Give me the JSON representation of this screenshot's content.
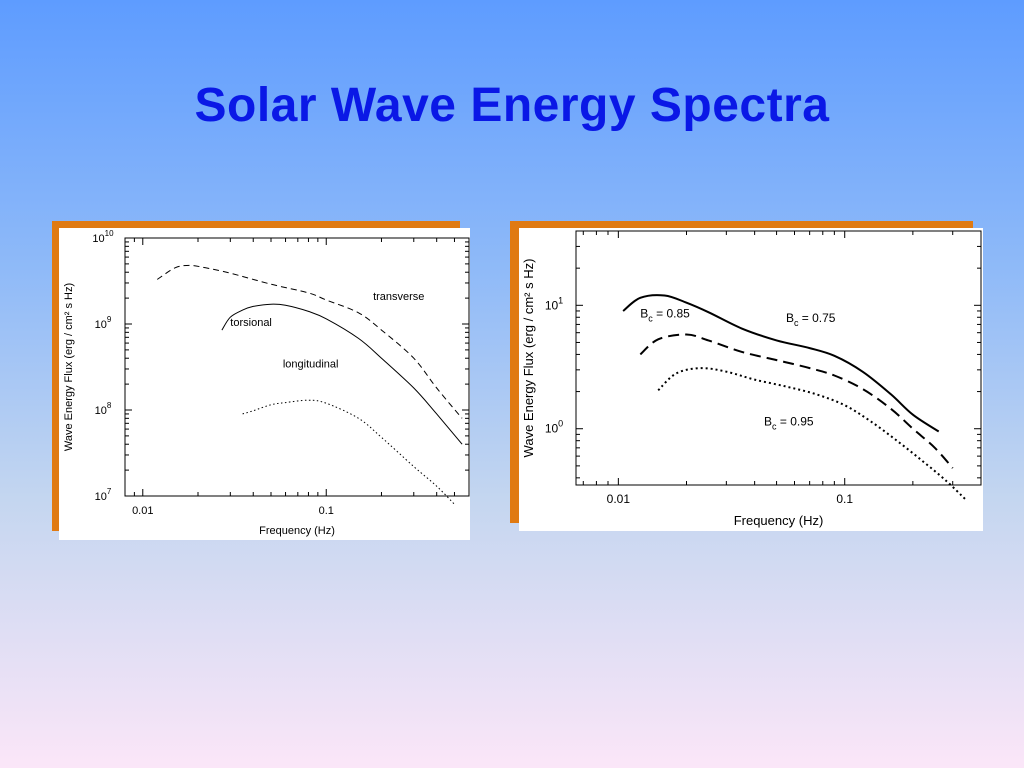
{
  "slide": {
    "title": "Solar Wave Energy Spectra"
  },
  "colors": {
    "title": "#0a18e6",
    "frame": "#e07a12",
    "panel": "#ffffff"
  },
  "chart_data": [
    {
      "type": "line",
      "xlabel": "Frequency  (Hz)",
      "ylabel": "Wave Energy Flux (erg / cm² s Hz)",
      "xscale": "log",
      "yscale": "log",
      "xlim": [
        0.008,
        0.6
      ],
      "ylim": [
        10000000.0,
        10000000000.0
      ],
      "xticks": [
        {
          "v": 0.01,
          "label": "0.01"
        },
        {
          "v": 0.1,
          "label": "0.1"
        }
      ],
      "yticks": [
        {
          "v": 10000000.0,
          "base": "10",
          "exp": "7"
        },
        {
          "v": 100000000.0,
          "base": "10",
          "exp": "8"
        },
        {
          "v": 1000000000.0,
          "base": "10",
          "exp": "9"
        },
        {
          "v": 10000000000.0,
          "base": "10",
          "exp": "10"
        }
      ],
      "series": [
        {
          "name": "transverse",
          "dash": "6,4",
          "width": 1,
          "x": [
            0.012,
            0.015,
            0.018,
            0.022,
            0.03,
            0.05,
            0.08,
            0.1,
            0.15,
            0.2,
            0.3,
            0.4,
            0.55
          ],
          "y": [
            3300000000.0,
            4500000000.0,
            4800000000.0,
            4500000000.0,
            3900000000.0,
            2900000000.0,
            2300000000.0,
            1900000000.0,
            1350000000.0,
            850000000.0,
            400000000.0,
            180000000.0,
            80000000.0
          ],
          "label": {
            "text": "transverse",
            "x": 0.18,
            "y": 1900000000.0
          }
        },
        {
          "name": "torsional",
          "dash": "",
          "width": 1,
          "x": [
            0.027,
            0.03,
            0.035,
            0.04,
            0.05,
            0.06,
            0.08,
            0.1,
            0.15,
            0.2,
            0.3,
            0.4,
            0.55
          ],
          "y": [
            850000000.0,
            1200000000.0,
            1450000000.0,
            1600000000.0,
            1700000000.0,
            1650000000.0,
            1400000000.0,
            1150000000.0,
            680000000.0,
            400000000.0,
            180000000.0,
            90000000.0,
            40000000.0
          ],
          "label": {
            "text": "torsional",
            "x": 0.03,
            "y": 950000000.0
          }
        },
        {
          "name": "longitudinal",
          "dash": "1.5,2.5",
          "width": 1,
          "x": [
            0.035,
            0.04,
            0.05,
            0.06,
            0.08,
            0.1,
            0.15,
            0.2,
            0.3,
            0.4,
            0.5
          ],
          "y": [
            90000000.0,
            98000000.0,
            115000000.0,
            122000000.0,
            130000000.0,
            120000000.0,
            80000000.0,
            48000000.0,
            22000000.0,
            13000000.0,
            8000000.0
          ],
          "label": {
            "text": "longitudinal",
            "x": 0.058,
            "y": 310000000.0
          }
        }
      ]
    },
    {
      "type": "line",
      "xlabel": "Frequency  (Hz)",
      "ylabel": "Wave Energy Flux  (erg / cm² s Hz)",
      "xscale": "log",
      "yscale": "log",
      "xlim": [
        0.0065,
        0.4
      ],
      "ylim": [
        0.35,
        40
      ],
      "xticks": [
        {
          "v": 0.01,
          "label": "0.01"
        },
        {
          "v": 0.1,
          "label": "0.1"
        }
      ],
      "yticks": [
        {
          "v": 1,
          "base": "10",
          "exp": "0"
        },
        {
          "v": 10,
          "base": "10",
          "exp": "1"
        }
      ],
      "series": [
        {
          "name": "B_c = 0.75",
          "dash": "",
          "width": 2,
          "x": [
            0.0105,
            0.0125,
            0.016,
            0.02,
            0.025,
            0.035,
            0.05,
            0.07,
            0.09,
            0.12,
            0.16,
            0.2,
            0.26
          ],
          "y": [
            9,
            11.5,
            12,
            10.5,
            8.8,
            6.5,
            5.2,
            4.5,
            3.9,
            2.9,
            1.9,
            1.3,
            0.95
          ],
          "label": {
            "text": "B",
            "sub": "c",
            "tail": " = 0.75",
            "x": 0.055,
            "y": 7.3
          }
        },
        {
          "name": "B_c = 0.85",
          "dash": "11,6",
          "width": 2,
          "x": [
            0.0125,
            0.015,
            0.02,
            0.025,
            0.035,
            0.05,
            0.07,
            0.09,
            0.12,
            0.16,
            0.2,
            0.25,
            0.3
          ],
          "y": [
            4.0,
            5.3,
            5.8,
            5.2,
            4.2,
            3.6,
            3.1,
            2.7,
            2.1,
            1.45,
            1.0,
            0.7,
            0.48
          ],
          "label": {
            "text": "B",
            "sub": "c",
            "tail": " = 0.85",
            "x": 0.0125,
            "y": 8.0
          }
        },
        {
          "name": "B_c = 0.95",
          "dash": "2,3",
          "width": 2,
          "x": [
            0.015,
            0.018,
            0.023,
            0.03,
            0.04,
            0.055,
            0.075,
            0.1,
            0.13,
            0.17,
            0.22,
            0.28,
            0.34
          ],
          "y": [
            2.05,
            2.8,
            3.1,
            2.9,
            2.5,
            2.2,
            1.9,
            1.55,
            1.15,
            0.8,
            0.55,
            0.38,
            0.27
          ],
          "label": {
            "text": "B",
            "sub": "c",
            "tail": " = 0.95",
            "x": 0.044,
            "y": 1.06
          }
        }
      ]
    }
  ]
}
